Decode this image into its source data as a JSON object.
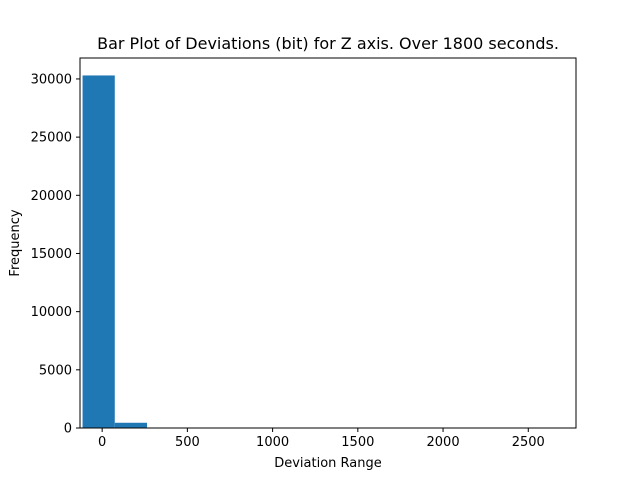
{
  "chart_data": {
    "type": "bar",
    "title": "Bar Plot of Deviations (bit) for Z axis. Over 1800 seconds.",
    "xlabel": "Deviation Range",
    "ylabel": "Frequency",
    "xlim": [
      -130,
      2780
    ],
    "ylim": [
      0,
      31800
    ],
    "xticks": [
      0,
      500,
      1000,
      1500,
      2000,
      2500
    ],
    "yticks": [
      0,
      5000,
      10000,
      15000,
      20000,
      25000,
      30000
    ],
    "bins": [
      {
        "x0": -115,
        "x1": 74,
        "value": 30300
      },
      {
        "x0": 74,
        "x1": 263,
        "value": 450
      },
      {
        "x0": 263,
        "x1": 452,
        "value": 0
      },
      {
        "x0": 452,
        "x1": 641,
        "value": 0
      },
      {
        "x0": 641,
        "x1": 830,
        "value": 0
      },
      {
        "x0": 830,
        "x1": 1019,
        "value": 0
      },
      {
        "x0": 1019,
        "x1": 1208,
        "value": 0
      },
      {
        "x0": 1208,
        "x1": 1397,
        "value": 0
      },
      {
        "x0": 1397,
        "x1": 1586,
        "value": 0
      },
      {
        "x0": 1586,
        "x1": 1775,
        "value": 0
      },
      {
        "x0": 1775,
        "x1": 1964,
        "value": 0
      },
      {
        "x0": 1964,
        "x1": 2153,
        "value": 0
      },
      {
        "x0": 2153,
        "x1": 2342,
        "value": 0
      },
      {
        "x0": 2342,
        "x1": 2531,
        "value": 0
      },
      {
        "x0": 2531,
        "x1": 2720,
        "value": 0
      }
    ],
    "bar_color": "#1f77b4",
    "grid": false,
    "legend": "none"
  }
}
